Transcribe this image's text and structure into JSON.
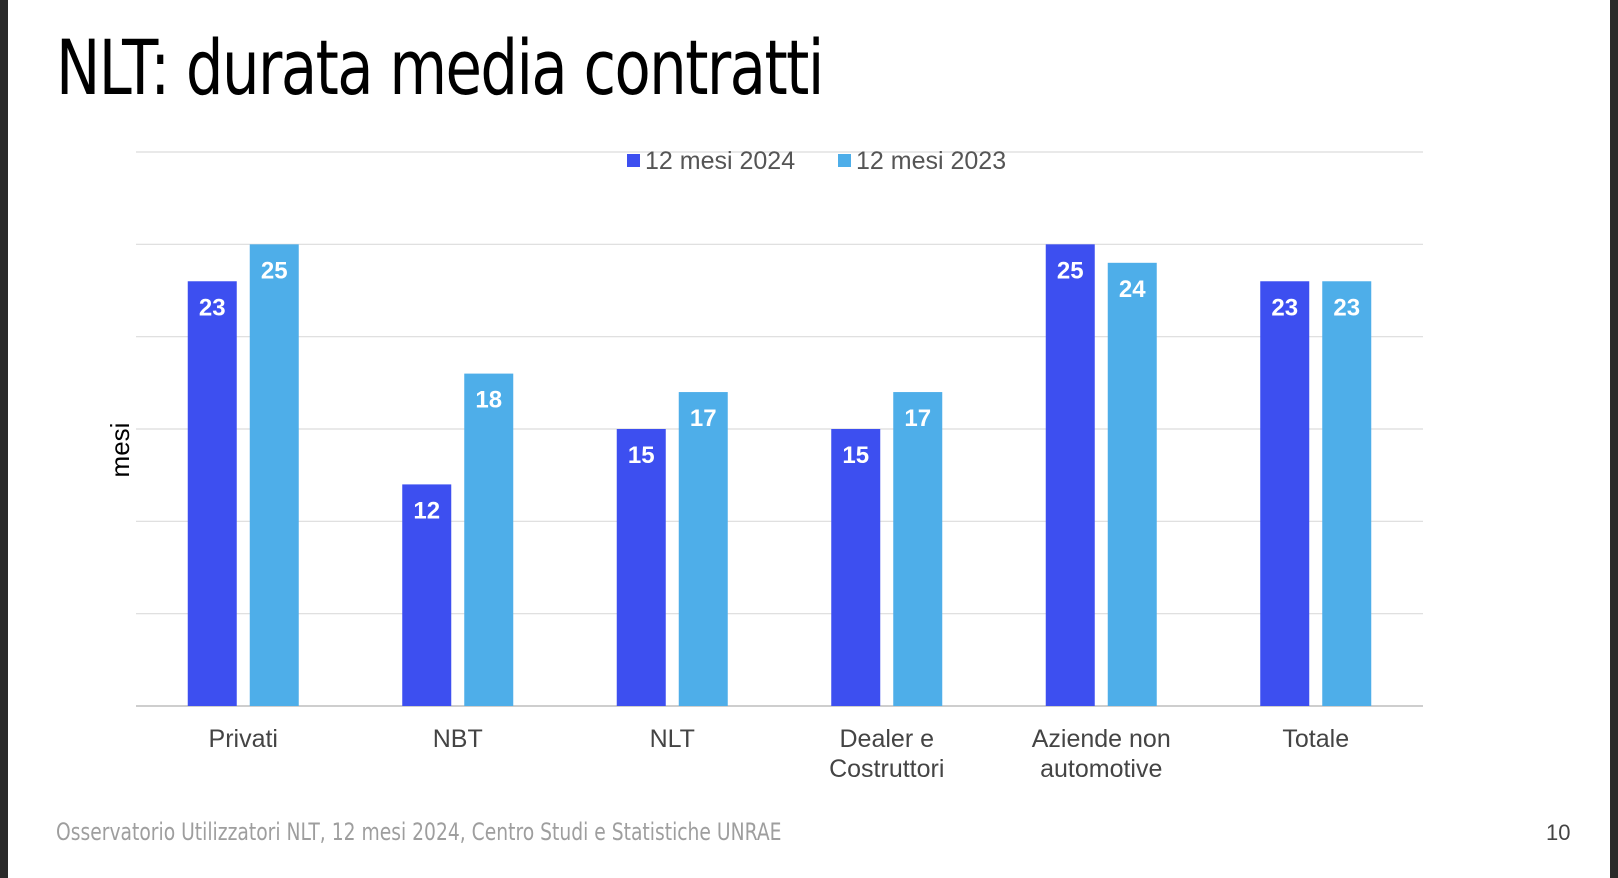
{
  "slide": {
    "title": "NLT: durata media contratti",
    "footer_source": "Osservatorio Utilizzatori NLT, 12 mesi 2024, Centro Studi e Statistiche UNRAE",
    "page_number": "10"
  },
  "chart_data": {
    "type": "bar",
    "title": "",
    "xlabel": "",
    "ylabel": "mesi",
    "categories": [
      [
        "Privati"
      ],
      [
        "NBT"
      ],
      [
        "NLT"
      ],
      [
        "Dealer e",
        "Costruttori"
      ],
      [
        "Aziende non",
        "automotive"
      ],
      [
        "Totale"
      ]
    ],
    "series": [
      {
        "name": "12 mesi 2024",
        "color": "#3d4ff0",
        "values": [
          23,
          12,
          15,
          15,
          25,
          23
        ]
      },
      {
        "name": "12 mesi 2023",
        "color": "#4eaee9",
        "values": [
          25,
          18,
          17,
          17,
          24,
          23
        ]
      }
    ],
    "ylim": [
      0,
      30
    ],
    "grid": true,
    "legend_position": "top"
  }
}
